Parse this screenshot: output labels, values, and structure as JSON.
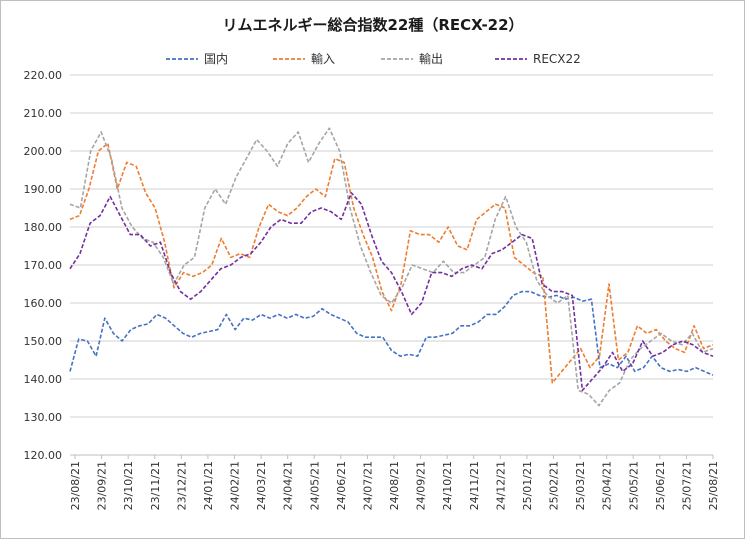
{
  "chart_data": {
    "type": "line",
    "title": "リムエネルギー総合指数22種（RECX-22）",
    "xlabel": "",
    "ylabel": "",
    "ylim": [
      120,
      220
    ],
    "y_ticks": [
      "120.00",
      "130.00",
      "140.00",
      "150.00",
      "160.00",
      "170.00",
      "180.00",
      "190.00",
      "200.00",
      "210.00",
      "220.00"
    ],
    "x_ticks": [
      "23/08/21",
      "23/09/21",
      "23/10/21",
      "23/11/21",
      "23/12/21",
      "24/01/21",
      "24/02/21",
      "24/03/21",
      "24/04/21",
      "24/05/21",
      "24/06/21",
      "24/07/21",
      "24/08/21",
      "24/09/21",
      "24/10/21",
      "24/11/21",
      "24/12/21",
      "25/01/21",
      "25/02/21",
      "25/03/21",
      "25/04/21",
      "25/05/21",
      "25/06/21",
      "25/07/21",
      "25/08/21"
    ],
    "grid": "horizontal",
    "legend_position": "top",
    "series": [
      {
        "name": "国内",
        "color": "#4472c4",
        "values": [
          142,
          150.5,
          150,
          146,
          156,
          152,
          150,
          153,
          154,
          154.5,
          157,
          156,
          154,
          152,
          151,
          152,
          152.5,
          153,
          157,
          153,
          156,
          155.5,
          157,
          156,
          157,
          156,
          157,
          156,
          156.5,
          158.5,
          157,
          156,
          155,
          152,
          151,
          151,
          151,
          147.5,
          146,
          146.5,
          146,
          151,
          151,
          151.5,
          152,
          154,
          154,
          155,
          157,
          157,
          159,
          162,
          163,
          163,
          162,
          161.5,
          162,
          161,
          161.5,
          160.5,
          161,
          143,
          144,
          143,
          146,
          142,
          143,
          146,
          143,
          142,
          142.5,
          142,
          143,
          142,
          141
        ]
      },
      {
        "name": "輸入",
        "color": "#ed7d31",
        "values": [
          182,
          183,
          190,
          200,
          202,
          190,
          197,
          196,
          189,
          185,
          176,
          164,
          168,
          167,
          168,
          170,
          177,
          172,
          173,
          172,
          180,
          186,
          184,
          183,
          185,
          188,
          190,
          188,
          198,
          197,
          185,
          178,
          172,
          163,
          158,
          165,
          179,
          178,
          178,
          176,
          180,
          175,
          174,
          182,
          184,
          186,
          185,
          172,
          170,
          168,
          167,
          139,
          142,
          145,
          148,
          143,
          146,
          165,
          145,
          147,
          154,
          152,
          153,
          150,
          148,
          147,
          154,
          148,
          149
        ]
      },
      {
        "name": "輸出",
        "color": "#a5a5a5",
        "values": [
          186,
          185,
          200,
          205,
          198,
          185,
          180,
          177,
          176,
          172,
          165,
          170,
          172,
          185,
          190,
          186,
          193,
          198,
          203,
          200,
          196,
          202,
          205,
          197,
          202,
          206,
          200,
          185,
          175,
          168,
          162,
          160,
          164,
          170,
          169,
          168,
          171,
          168,
          168,
          170,
          172,
          182,
          188,
          180,
          176,
          166,
          162,
          160,
          162,
          137,
          136,
          133,
          137,
          139,
          145,
          148,
          150,
          152,
          150,
          149,
          152,
          147,
          148
        ]
      },
      {
        "name": "RECX22",
        "color": "#7030a0",
        "values": [
          169,
          173,
          181,
          183,
          188,
          183,
          178,
          178,
          175,
          176,
          168,
          163,
          161,
          163,
          166,
          169,
          170,
          172,
          173,
          176,
          180,
          182,
          181,
          181,
          184,
          185,
          184,
          182,
          189,
          186,
          178,
          171,
          168,
          163,
          157,
          160,
          168,
          168,
          167,
          169,
          170,
          169,
          173,
          174,
          176,
          178,
          177,
          165,
          163,
          163,
          162,
          137,
          140,
          143,
          147,
          142,
          144,
          150,
          146,
          147,
          149,
          150,
          149,
          147,
          146
        ]
      }
    ]
  }
}
